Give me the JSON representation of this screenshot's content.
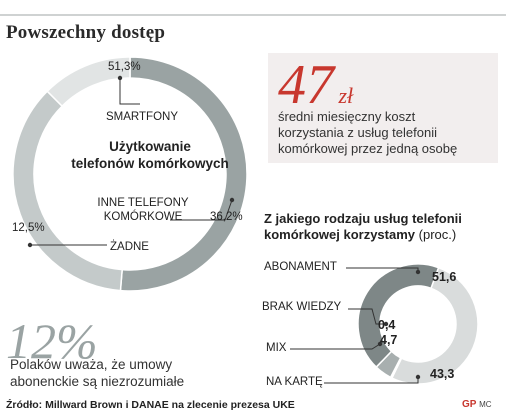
{
  "header": {
    "title": "Powszechny dostęp"
  },
  "chart_data": [
    {
      "type": "pie",
      "center_title_line1": "Użytkowanie",
      "center_title_line2": "telefonów komórkowych",
      "slices": [
        {
          "label": "SMARTFONY",
          "value": 51.3,
          "value_label": "51,3%",
          "color": "#9aa3a3"
        },
        {
          "label_line1": "INNE TELEFONY",
          "label_line2": "KOMÓRKOWE",
          "value": 36.2,
          "value_label": "36,2%",
          "color": "#c4caca"
        },
        {
          "label": "ŻADNE",
          "value": 12.5,
          "value_label": "12,5%",
          "color": "#e1e4e4"
        }
      ]
    },
    {
      "type": "pie",
      "title": "Z jakiego rodzaju usług telefonii komórkowej korzystamy",
      "unit": "(proc.)",
      "slices": [
        {
          "label": "ABONAMENT",
          "value": 51.6,
          "value_label": "51,6",
          "color": "#d9dcdc"
        },
        {
          "label": "BRAK WIEDZY",
          "value": 0.4,
          "value_label": "0,4",
          "color": "#bfc4c4"
        },
        {
          "label": "MIX",
          "value": 4.7,
          "value_label": "4,7",
          "color": "#a8afaf"
        },
        {
          "label": "NA KARTĘ",
          "value": 43.3,
          "value_label": "43,3",
          "color": "#7e8787"
        }
      ]
    }
  ],
  "callout": {
    "number": "47",
    "unit": "zł",
    "text_line1": "średni miesięczny koszt",
    "text_line2": "korzystania z usług telefonii",
    "text_line3": "komórkowej przez jedną osobę"
  },
  "note": {
    "number": "12%",
    "text_line1": "Polaków uważa, że umowy",
    "text_line2": "abonenckie są niezrozumiałe"
  },
  "footer": {
    "source": "Źródło: Millward Brown i DANAE na zlecenie prezesa UKE",
    "logo": "GP",
    "logo_tail": "MC"
  }
}
